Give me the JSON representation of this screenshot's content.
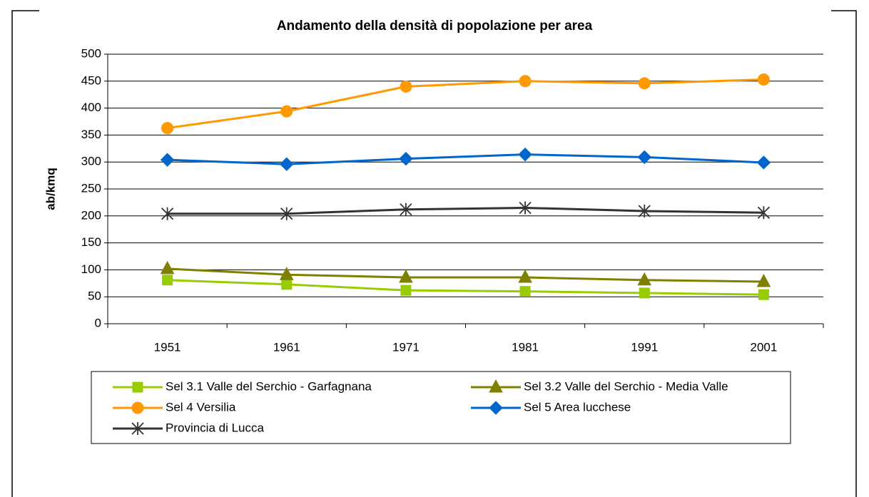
{
  "chart_data": {
    "type": "line",
    "title": "Andamento della densità di popolazione per area",
    "y_label": "ab/kmq",
    "categories": [
      "1951",
      "1961",
      "1971",
      "1981",
      "1991",
      "2001"
    ],
    "ylim": [
      0,
      500
    ],
    "yticks": [
      0,
      50,
      100,
      150,
      200,
      250,
      300,
      350,
      400,
      450,
      500
    ],
    "grid": true,
    "series": [
      {
        "name": "Sel 3.1 Valle del Serchio - Garfagnana",
        "color": "#99cc00",
        "marker": "square",
        "values": [
          81,
          73,
          62,
          60,
          57,
          54
        ]
      },
      {
        "name": "Sel 3.2 Valle del Serchio - Media Valle",
        "color": "#808000",
        "marker": "triangle",
        "values": [
          102,
          91,
          86,
          86,
          81,
          78
        ]
      },
      {
        "name": "Sel 4 Versilia",
        "color": "#ff9900",
        "marker": "circle",
        "values": [
          363,
          394,
          440,
          450,
          446,
          453
        ]
      },
      {
        "name": "Sel 5 Area lucchese",
        "color": "#0066cc",
        "marker": "diamond",
        "values": [
          304,
          296,
          306,
          314,
          309,
          299
        ]
      },
      {
        "name": "Provincia di Lucca",
        "color": "#333333",
        "marker": "star",
        "values": [
          204,
          204,
          212,
          215,
          209,
          206
        ]
      }
    ]
  }
}
